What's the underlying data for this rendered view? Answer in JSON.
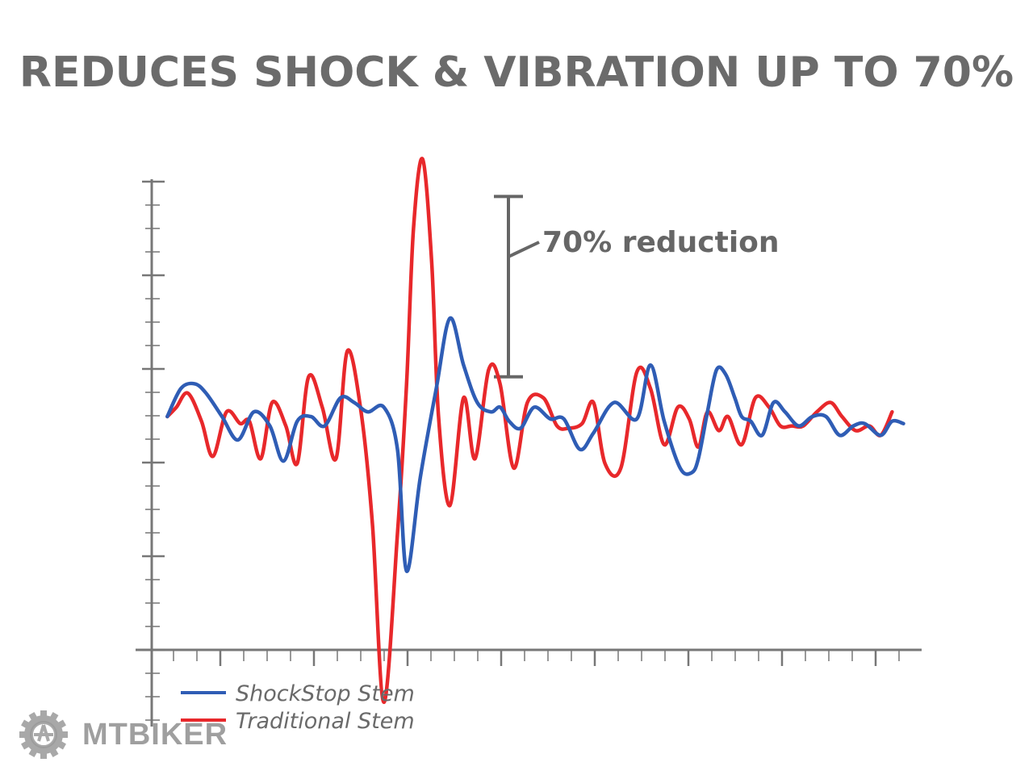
{
  "title": "REDUCES SHOCK & VIBRATION UP TO 70%",
  "chart_data": {
    "type": "line",
    "title": "REDUCES SHOCK & VIBRATION UP TO 70%",
    "xlabel": "",
    "ylabel": "",
    "xlim": [
      0,
      33
    ],
    "ylim": [
      -4,
      6
    ],
    "grid": false,
    "legend_position": "bottom-left",
    "annotation": {
      "label": "70% reduction",
      "y_top": 5.2,
      "y_bottom": 1.35
    },
    "series": [
      {
        "name": "ShockStop Stem",
        "color": "#2f5db5",
        "x": [
          0.4,
          1.0,
          1.6,
          2.1,
          2.8,
          3.5,
          4.2,
          4.9,
          5.5,
          6.1,
          6.7,
          7.3,
          8.0,
          8.6,
          9.2,
          9.9,
          10.5,
          10.9,
          11.5,
          12.2,
          12.8,
          13.4,
          14.0,
          14.6,
          15.0,
          15.4,
          15.9,
          16.5,
          17.2,
          17.8,
          18.5,
          19.1,
          20.0,
          21.0,
          21.6,
          22.2,
          22.9,
          23.4,
          23.7,
          24.1,
          24.5,
          24.9,
          25.3,
          25.6,
          26.0,
          26.5,
          27.0,
          27.5,
          28.1,
          28.7,
          29.3,
          29.9,
          30.5,
          31.0,
          31.7,
          32.2,
          32.7
        ],
        "y": [
          0.5,
          1.1,
          1.2,
          1.0,
          0.5,
          0.0,
          0.6,
          0.3,
          -0.45,
          0.4,
          0.5,
          0.3,
          0.9,
          0.8,
          0.6,
          0.7,
          -0.2,
          -2.8,
          -0.8,
          1.1,
          2.6,
          1.6,
          0.8,
          0.6,
          0.7,
          0.4,
          0.25,
          0.7,
          0.45,
          0.45,
          -0.2,
          0.15,
          0.8,
          0.45,
          1.6,
          0.4,
          -0.6,
          -0.7,
          -0.4,
          0.6,
          1.5,
          1.4,
          0.9,
          0.5,
          0.4,
          0.1,
          0.8,
          0.6,
          0.3,
          0.5,
          0.5,
          0.1,
          0.3,
          0.35,
          0.1,
          0.4,
          0.35
        ],
        "y_scale": 1
      },
      {
        "name": "Traditional Stem",
        "color": "#e8282b",
        "x": [
          0.4,
          0.8,
          1.3,
          1.9,
          2.4,
          3.0,
          3.6,
          4.0,
          4.5,
          5.0,
          5.6,
          6.1,
          6.6,
          7.2,
          7.8,
          8.3,
          8.9,
          9.4,
          9.9,
          10.5,
          10.9,
          11.2,
          11.6,
          12.0,
          12.3,
          12.8,
          13.4,
          13.9,
          14.5,
          15.0,
          15.6,
          16.2,
          16.9,
          17.5,
          18.0,
          18.6,
          19.1,
          19.6,
          20.3,
          21.0,
          21.6,
          22.2,
          22.8,
          23.3,
          23.7,
          24.1,
          24.6,
          25.0,
          25.6,
          26.2,
          26.8,
          27.3,
          27.8,
          28.3,
          28.9,
          29.5,
          30.0,
          30.6,
          31.2,
          31.7,
          32.2
        ],
        "y": [
          0.5,
          0.7,
          1.0,
          0.4,
          -0.35,
          0.6,
          0.35,
          0.4,
          -0.4,
          0.8,
          0.3,
          -0.5,
          1.35,
          0.7,
          -0.4,
          1.9,
          0.6,
          -1.8,
          -5.6,
          -2.0,
          1.2,
          4.5,
          6.0,
          3.8,
          0.5,
          -1.4,
          0.9,
          -0.4,
          1.5,
          1.2,
          -0.6,
          0.8,
          0.9,
          0.3,
          0.25,
          0.35,
          0.8,
          -0.5,
          -0.6,
          1.45,
          1.1,
          -0.1,
          0.7,
          0.45,
          -0.15,
          0.6,
          0.2,
          0.5,
          -0.1,
          0.9,
          0.7,
          0.3,
          0.3,
          0.3,
          0.6,
          0.8,
          0.5,
          0.2,
          0.3,
          0.1,
          0.6
        ],
        "y_scale": 1
      }
    ]
  }
}
